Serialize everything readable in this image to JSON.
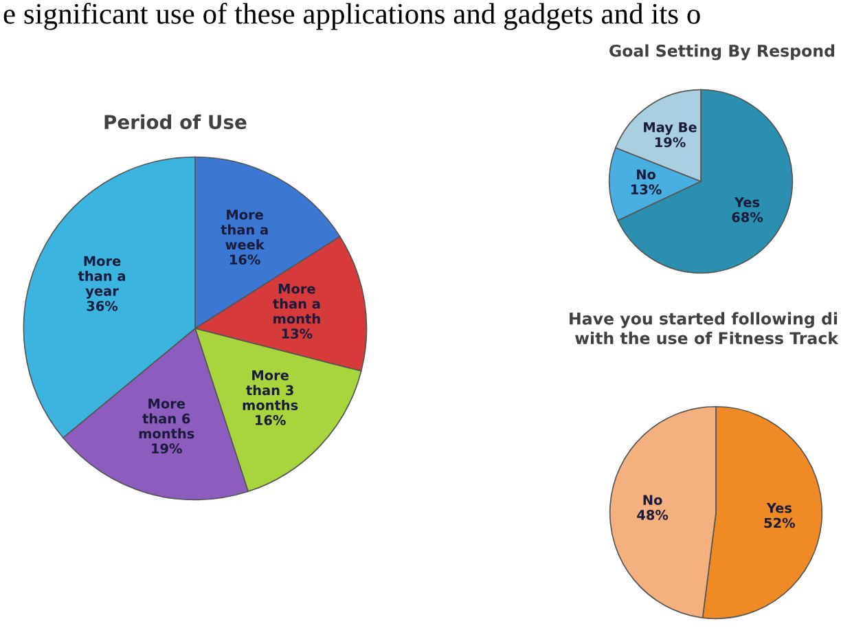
{
  "chart_data": [
    {
      "type": "pie",
      "title": "Period of Use",
      "categories": [
        "More than a week",
        "More than a month",
        "More than 3 months",
        "More than 6 months",
        "More than a year"
      ],
      "values": [
        16,
        13,
        16,
        19,
        36
      ],
      "colors": [
        "#3a78d4",
        "#d63a3a",
        "#a8d43c",
        "#8c5cbf",
        "#3bb4e0"
      ],
      "value_labels": [
        "16%",
        "13%",
        "16%",
        "19%",
        "36%"
      ],
      "annotations": [
        "e significant use of these applications and gadgets and its o"
      ]
    },
    {
      "type": "pie",
      "title": "Goal Setting By Respond",
      "categories": [
        "Yes",
        "No",
        "May Be"
      ],
      "values": [
        68,
        13,
        19
      ],
      "colors": [
        "#2a8fb0",
        "#49aee0",
        "#a9cfe0"
      ],
      "value_labels": [
        "68%",
        "13%",
        "19%"
      ]
    },
    {
      "type": "pie",
      "title": "Have you started following di\nwith the use of Fitness Track",
      "categories": [
        "Yes",
        "No"
      ],
      "values": [
        52,
        48
      ],
      "colors": [
        "#f08a24",
        "#f5b07f"
      ],
      "value_labels": [
        "52%",
        "48%"
      ]
    }
  ]
}
